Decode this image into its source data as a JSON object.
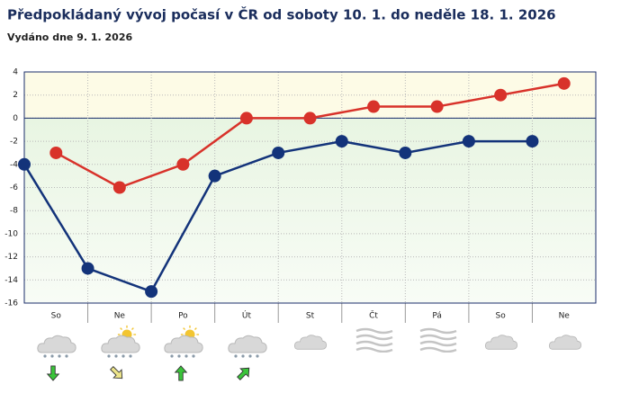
{
  "chart_data": {
    "type": "line",
    "title": "Předpokládaný vývoj počasí v ČR od soboty 10. 1. do neděle 18. 1. 2026",
    "subtitle": "Vydáno dne 9. 1. 2026",
    "categories": [
      "So",
      "Ne",
      "Po",
      "Út",
      "St",
      "Čt",
      "Pá",
      "So",
      "Ne"
    ],
    "series": [
      {
        "color": "#13337a",
        "values": [
          -4,
          -13,
          -15,
          -5,
          -3,
          -2,
          -3,
          -2,
          -2
        ]
      },
      {
        "color": "#d8322a",
        "values": [
          -3,
          -6,
          -4,
          0,
          0,
          1,
          1,
          2,
          3
        ]
      }
    ],
    "ylim": [
      -16,
      4
    ],
    "yticks": [
      -16,
      -14,
      -12,
      -10,
      -8,
      -6,
      -4,
      -2,
      0,
      2,
      4
    ],
    "grid": true
  }
}
